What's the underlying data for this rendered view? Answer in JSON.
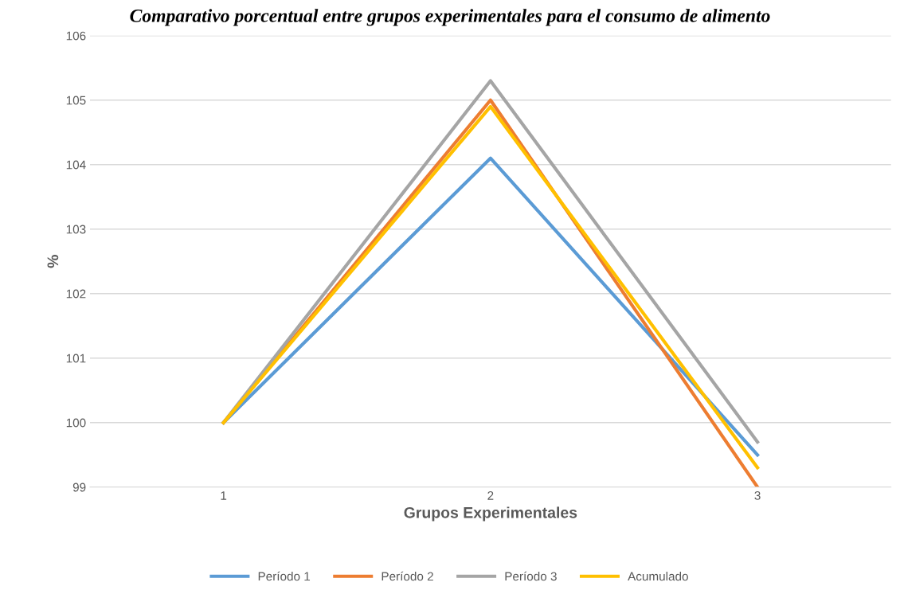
{
  "chart_data": {
    "type": "line",
    "title": "Comparativo porcentual entre grupos experimentales para el consumo de alimento",
    "xlabel": "Grupos Experimentales",
    "ylabel": "%",
    "categories": [
      "1",
      "2",
      "3"
    ],
    "series": [
      {
        "name": "Período 1",
        "color": "#5b9bd5",
        "values": [
          100,
          104.1,
          99.5
        ]
      },
      {
        "name": "Período 2",
        "color": "#ed7d31",
        "values": [
          100,
          105.0,
          99.0
        ]
      },
      {
        "name": "Período 3",
        "color": "#a5a5a5",
        "values": [
          100,
          105.3,
          99.7
        ]
      },
      {
        "name": "Acumulado",
        "color": "#ffc000",
        "values": [
          100,
          104.9,
          99.3
        ]
      }
    ],
    "ylim": [
      99,
      106
    ],
    "yticks": [
      99,
      100,
      101,
      102,
      103,
      104,
      105,
      106
    ],
    "grid": "y",
    "legend": "bottom",
    "marker": "none",
    "line_style": "solid"
  }
}
